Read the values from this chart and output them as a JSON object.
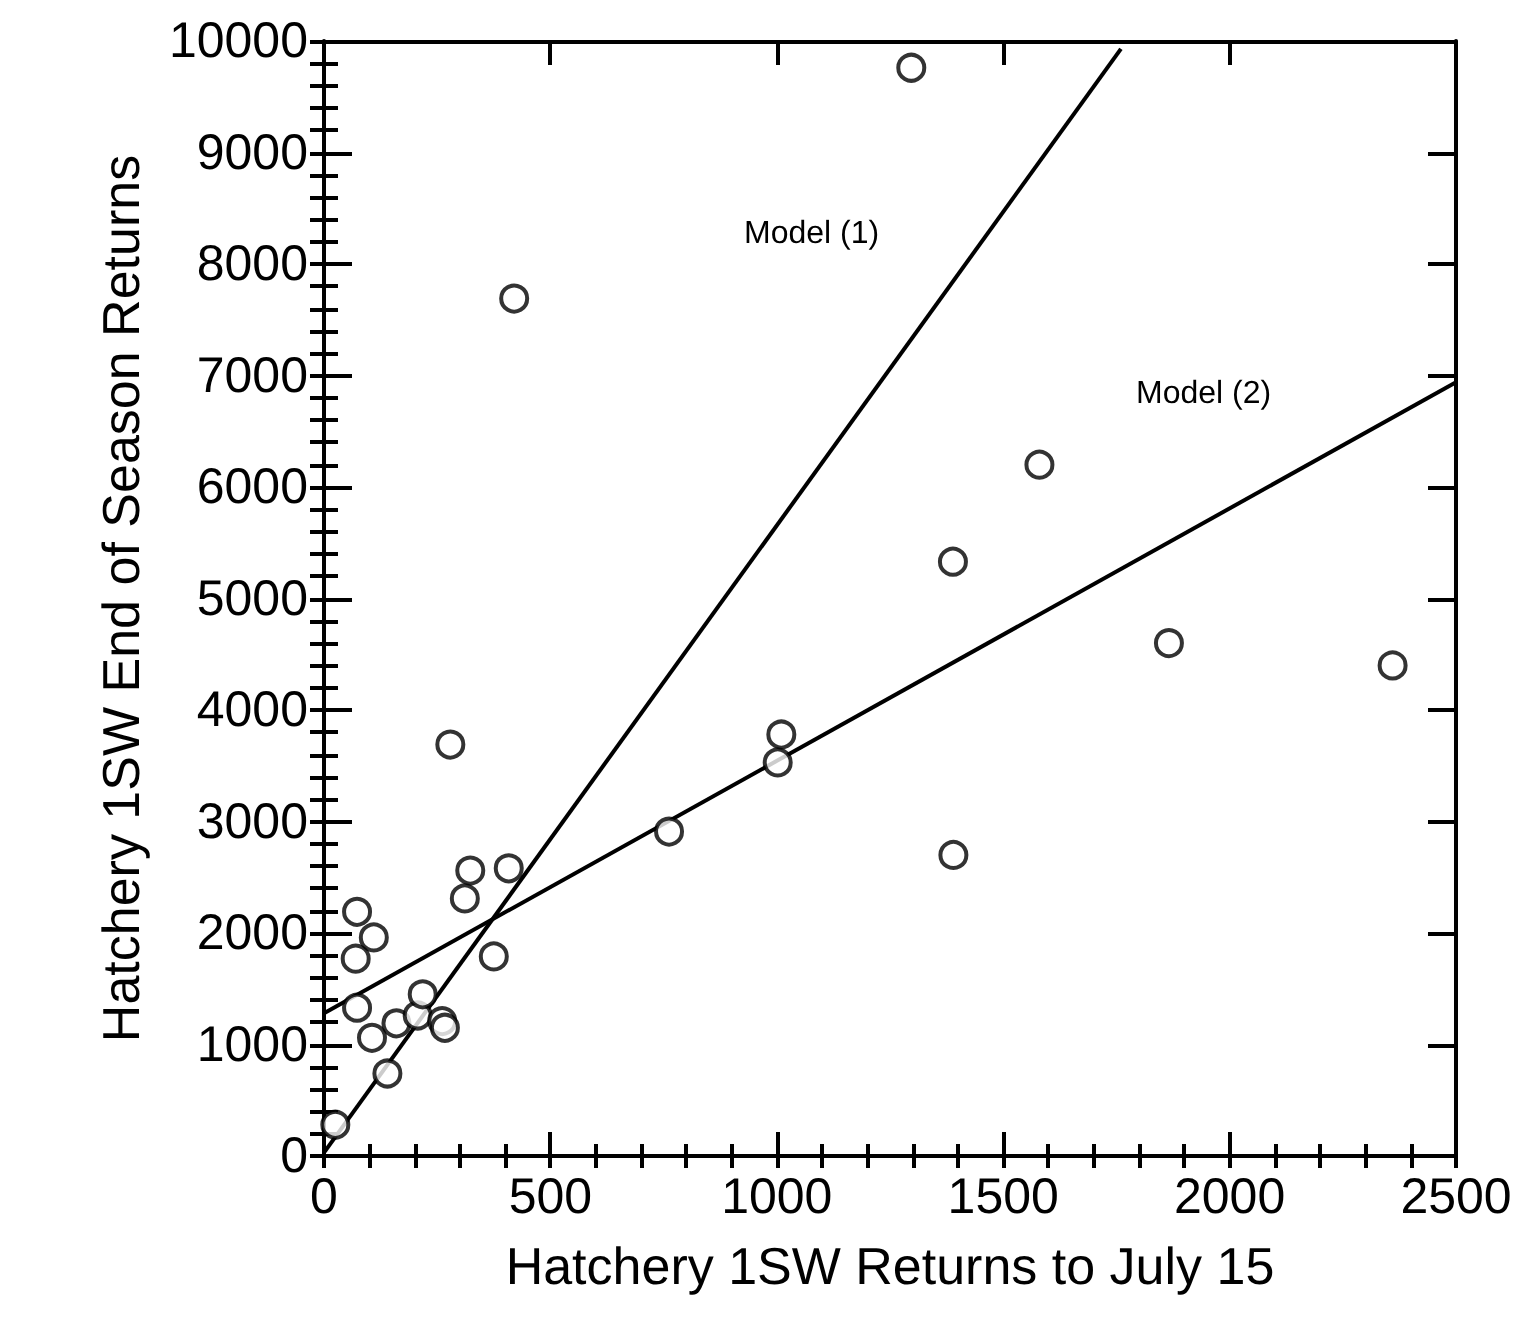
{
  "chart_data": {
    "type": "scatter",
    "xlabel": "Hatchery 1SW Returns to July 15",
    "ylabel": "Hatchery 1SW End of Season Returns",
    "xlim": [
      0,
      2500
    ],
    "xticks": [
      0,
      500,
      1000,
      1500,
      2000,
      2500
    ],
    "ylim": [
      0,
      10000
    ],
    "yticks": [
      0,
      1000,
      2000,
      3000,
      4000,
      5000,
      6000,
      7000,
      8000,
      9000,
      10000
    ],
    "grid": false,
    "marker": "circle",
    "series": [
      {
        "color": "#000000",
        "x": [
          25,
          73,
          110,
          70,
          73,
          106,
          140,
          160,
          207,
          218,
          261,
          267,
          311,
          323,
          408,
          375,
          279,
          762,
          1002,
          1010,
          1390,
          1297,
          420,
          1580,
          1389,
          1866,
          2360
        ],
        "values": [
          280,
          2190,
          1960,
          1770,
          1330,
          1060,
          740,
          1190,
          1260,
          1450,
          1210,
          1150,
          2310,
          2560,
          2580,
          1790,
          3690,
          2910,
          3530,
          3780,
          2700,
          9760,
          7690,
          6200,
          5330,
          4600,
          4400
        ]
      },
      {
        "type": "line",
        "color": "#000000",
        "line_style": "solid",
        "marker": "none",
        "x": [
          0,
          1760
        ],
        "values": [
          30,
          9930
        ]
      },
      {
        "type": "line",
        "color": "#000000",
        "line_style": "solid",
        "marker": "none",
        "x": [
          0,
          2500
        ],
        "values": [
          1280,
          6940
        ]
      }
    ],
    "annotations": [
      "Model (1)",
      "Model (2)"
    ]
  }
}
